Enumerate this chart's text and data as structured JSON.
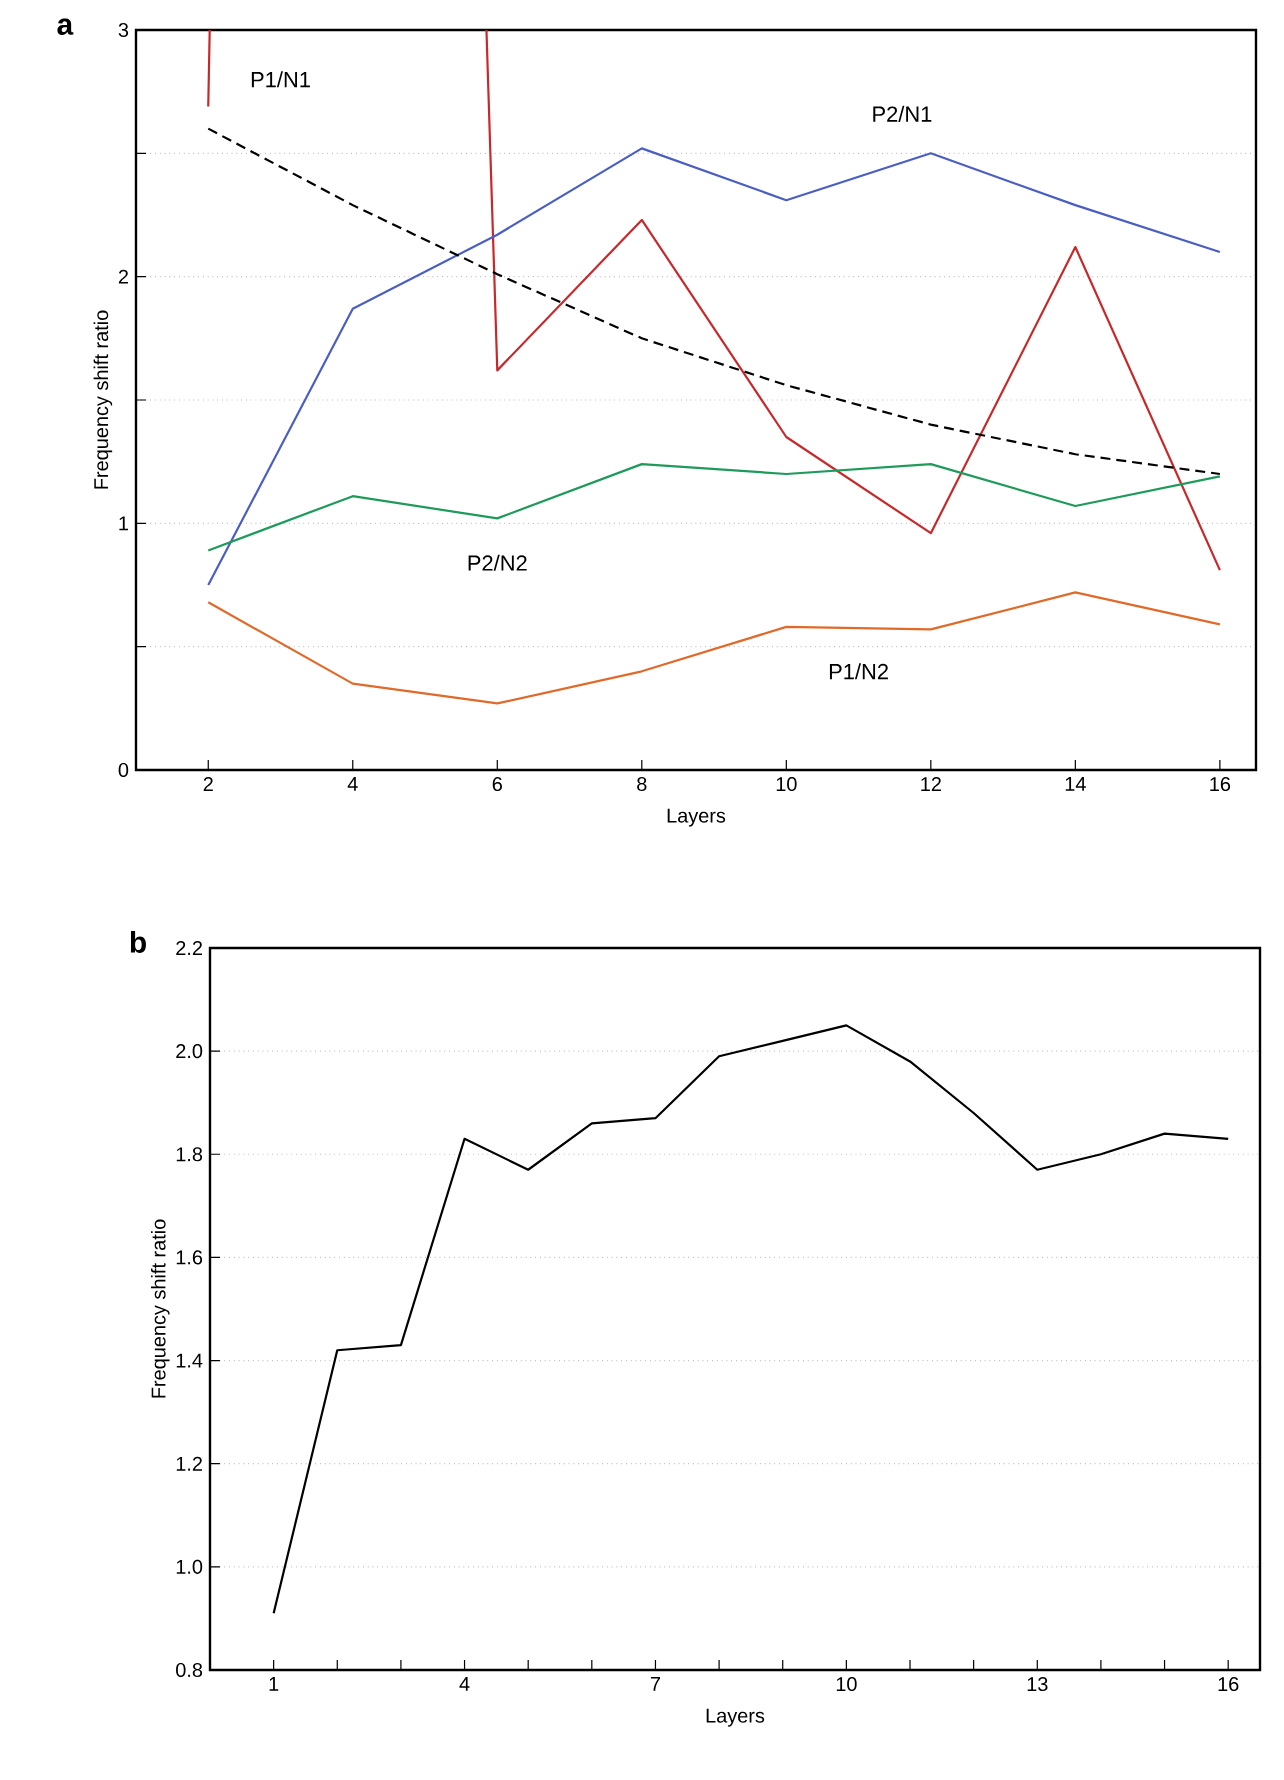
{
  "chart_data": [
    {
      "type": "line",
      "title": "a",
      "xlabel": "Layers",
      "ylabel": "Frequency shift ratio",
      "x": [
        2,
        4,
        6,
        8,
        10,
        12,
        14,
        16
      ],
      "series": [
        {
          "name": "P1/N1",
          "color": "#c8282a",
          "x": [
            2,
            2.02,
            4,
            5.85,
            6,
            8,
            10,
            12,
            14,
            16
          ],
          "values": [
            2.69,
            3,
            null,
            3,
            1.62,
            2.23,
            1.35,
            0.96,
            2.12,
            0.81
          ]
        },
        {
          "name": "P2/N1",
          "color": "#4a5fc1",
          "values": [
            0.75,
            1.87,
            2.17,
            2.52,
            2.31,
            2.5,
            2.29,
            2.1
          ]
        },
        {
          "name": "P2/N2",
          "color": "#1e9a5a",
          "values": [
            0.89,
            1.11,
            1.02,
            1.24,
            1.2,
            1.24,
            1.07,
            1.19
          ]
        },
        {
          "name": "P1/N2",
          "color": "#e06a2a",
          "values": [
            0.68,
            0.35,
            0.27,
            0.4,
            0.58,
            0.57,
            0.72,
            0.59
          ]
        },
        {
          "color": "#000000",
          "line_style": "dashed",
          "values": [
            2.6,
            2.29,
            2.01,
            1.75,
            1.56,
            1.4,
            1.28,
            1.2
          ]
        }
      ],
      "xlim": [
        1,
        16.5
      ],
      "ylim": [
        0,
        3
      ],
      "xticks": [
        2,
        4,
        6,
        8,
        10,
        12,
        14,
        16
      ],
      "yticks": [
        0,
        {
          "value": 0.5,
          "label": null
        },
        1,
        {
          "value": 1.5,
          "label": null
        },
        2,
        {
          "value": 2.5,
          "label": null
        },
        3
      ],
      "grid": "y",
      "line_style": "solid"
    },
    {
      "type": "line",
      "title": "b",
      "xlabel": "Layers",
      "ylabel": "Frequency shift ratio",
      "x": [
        1,
        2,
        3,
        4,
        5,
        6,
        7,
        8,
        9,
        10,
        11,
        12,
        13,
        14,
        15,
        16
      ],
      "series": [
        {
          "color": "#000000",
          "values": [
            0.91,
            1.42,
            1.43,
            1.83,
            1.77,
            1.86,
            1.87,
            1.99,
            2.02,
            2.05,
            1.98,
            1.88,
            1.77,
            1.8,
            1.84,
            1.83
          ]
        }
      ],
      "xlim": [
        0,
        16.5
      ],
      "ylim": [
        0.8,
        2.2
      ],
      "xticks": [
        1,
        {
          "value": 2,
          "label": null
        },
        {
          "value": 3,
          "label": null
        },
        4,
        {
          "value": 5,
          "label": null
        },
        {
          "value": 6,
          "label": null
        },
        7,
        {
          "value": 8,
          "label": null
        },
        {
          "value": 9,
          "label": null
        },
        10,
        {
          "value": 11,
          "label": null
        },
        {
          "value": 12,
          "label": null
        },
        13,
        {
          "value": 14,
          "label": null
        },
        {
          "value": 15,
          "label": null
        },
        16
      ],
      "yticks": [
        {
          "value": 0.8,
          "label": "0.8"
        },
        {
          "value": 1.0,
          "label": "1.0"
        },
        {
          "value": 1.2,
          "label": "1.2"
        },
        {
          "value": 1.4,
          "label": "1.4"
        },
        {
          "value": 1.6,
          "label": "1.6"
        },
        {
          "value": 1.8,
          "label": "1.8"
        },
        {
          "value": 2.0,
          "label": "2.0"
        },
        {
          "value": 2.2,
          "label": "2.2"
        }
      ],
      "grid": "y",
      "line_style": "solid"
    }
  ]
}
